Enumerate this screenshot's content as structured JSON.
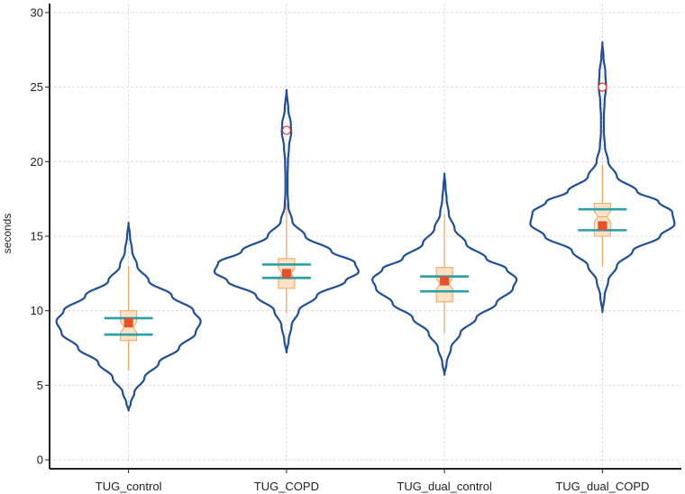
{
  "chart_data": {
    "type": "violin",
    "title": "",
    "xlabel": "",
    "ylabel": "seconds",
    "ylim": [
      -0.6,
      30.6
    ],
    "yticks": [
      0,
      5,
      10,
      15,
      20,
      25,
      30
    ],
    "grid": true,
    "categories": [
      "TUG_control",
      "TUG_COPD",
      "TUG_dual_control",
      "TUG_dual_COPD"
    ],
    "series": [
      {
        "name": "TUG_control",
        "kde_min": 3.3,
        "kde_max": 15.9,
        "whisker_low": 6.0,
        "whisker_high": 13.0,
        "q1": 8.0,
        "median": 8.9,
        "q3": 10.0,
        "mean": 9.2,
        "mean_ci_low": 8.4,
        "mean_ci_high": 9.5,
        "outliers": [],
        "density": [
          [
            3.3,
            0
          ],
          [
            3.8,
            0.03
          ],
          [
            4.5,
            0.08
          ],
          [
            5.5,
            0.22
          ],
          [
            6.5,
            0.42
          ],
          [
            7.5,
            0.7
          ],
          [
            8.5,
            0.93
          ],
          [
            9.3,
            1.0
          ],
          [
            10.0,
            0.9
          ],
          [
            11.0,
            0.6
          ],
          [
            12.0,
            0.28
          ],
          [
            13.0,
            0.12
          ],
          [
            14.0,
            0.05
          ],
          [
            15.0,
            0.02
          ],
          [
            15.9,
            0
          ]
        ]
      },
      {
        "name": "TUG_COPD",
        "kde_min": 7.2,
        "kde_max": 24.8,
        "whisker_low": 9.8,
        "whisker_high": 17.2,
        "q1": 11.5,
        "median": 12.5,
        "q3": 13.5,
        "mean": 12.5,
        "mean_ci_low": 12.2,
        "mean_ci_high": 13.1,
        "outliers": [
          22.1
        ],
        "density": [
          [
            7.2,
            0
          ],
          [
            8.0,
            0.03
          ],
          [
            9.0,
            0.07
          ],
          [
            10.0,
            0.17
          ],
          [
            11.0,
            0.42
          ],
          [
            12.0,
            0.82
          ],
          [
            12.6,
            1.0
          ],
          [
            13.2,
            0.95
          ],
          [
            14.0,
            0.62
          ],
          [
            15.0,
            0.26
          ],
          [
            16.0,
            0.08
          ],
          [
            17.0,
            0.025
          ],
          [
            18.0,
            0.015
          ],
          [
            19.0,
            0.015
          ],
          [
            20.0,
            0.02
          ],
          [
            21.0,
            0.035
          ],
          [
            22.0,
            0.065
          ],
          [
            22.5,
            0.06
          ],
          [
            23.5,
            0.025
          ],
          [
            24.8,
            0
          ]
        ]
      },
      {
        "name": "TUG_dual_control",
        "kde_min": 5.7,
        "kde_max": 19.2,
        "whisker_low": 8.5,
        "whisker_high": 16.5,
        "q1": 10.6,
        "median": 11.8,
        "q3": 12.9,
        "mean": 12.0,
        "mean_ci_low": 11.3,
        "mean_ci_high": 12.3,
        "outliers": [],
        "density": [
          [
            5.7,
            0
          ],
          [
            6.5,
            0.03
          ],
          [
            7.5,
            0.09
          ],
          [
            8.5,
            0.22
          ],
          [
            9.5,
            0.44
          ],
          [
            10.5,
            0.72
          ],
          [
            11.5,
            0.95
          ],
          [
            12.1,
            1.0
          ],
          [
            12.8,
            0.86
          ],
          [
            13.5,
            0.58
          ],
          [
            14.5,
            0.3
          ],
          [
            15.5,
            0.14
          ],
          [
            16.5,
            0.06
          ],
          [
            17.5,
            0.03
          ],
          [
            18.3,
            0.015
          ],
          [
            19.2,
            0
          ]
        ]
      },
      {
        "name": "TUG_dual_COPD",
        "kde_min": 9.9,
        "kde_max": 28.0,
        "whisker_low": 13.0,
        "whisker_high": 19.8,
        "q1": 15.0,
        "median": 16.3,
        "q3": 17.2,
        "mean": 15.7,
        "mean_ci_low": 15.4,
        "mean_ci_high": 16.8,
        "outliers": [
          25.0
        ],
        "density": [
          [
            9.9,
            0
          ],
          [
            11.0,
            0.03
          ],
          [
            12.0,
            0.08
          ],
          [
            13.0,
            0.2
          ],
          [
            14.0,
            0.42
          ],
          [
            15.0,
            0.8
          ],
          [
            15.8,
            1.0
          ],
          [
            16.6,
            0.97
          ],
          [
            17.3,
            0.78
          ],
          [
            18.0,
            0.48
          ],
          [
            19.0,
            0.2
          ],
          [
            20.0,
            0.08
          ],
          [
            21.0,
            0.035
          ],
          [
            22.0,
            0.02
          ],
          [
            23.0,
            0.02
          ],
          [
            24.0,
            0.03
          ],
          [
            25.0,
            0.05
          ],
          [
            26.0,
            0.04
          ],
          [
            27.0,
            0.015
          ],
          [
            28.0,
            0
          ]
        ]
      }
    ],
    "colors": {
      "violin": "#1f4e99",
      "box_fill": "#fde2c4",
      "box_edge": "#f2a35e",
      "whisker": "#f2a35e",
      "mean_marker": "#e8502a",
      "ci_lines": "#2aa0a4",
      "outlier_edge": "#e8302a",
      "grid": "#d6d6d6",
      "axis": "#222222"
    }
  }
}
